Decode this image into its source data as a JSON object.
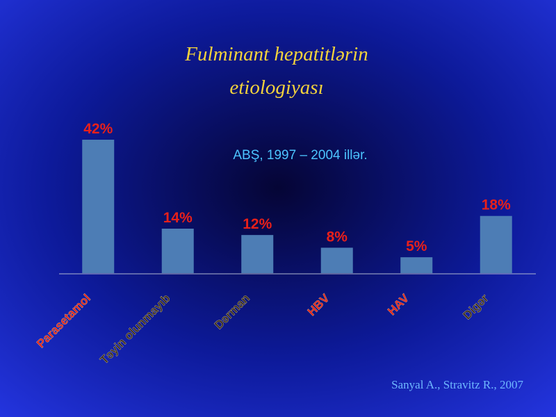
{
  "chart_data": {
    "type": "bar",
    "title": [
      "Fulminant hepatitlərin",
      "etiologiyası"
    ],
    "subtitle": "ABŞ, 1997 – 2004 illər.",
    "categories": [
      "Parasetamol",
      "Təyin olunmayıb",
      "Dərman",
      "HBV",
      "HAV",
      "Digər"
    ],
    "values": [
      42,
      14,
      12,
      8,
      5,
      18
    ],
    "value_labels": [
      "42%",
      "14%",
      "12%",
      "8%",
      "5%",
      "18%"
    ],
    "color": "#4d7db5",
    "value_label_color": "#e8201a",
    "category_colors": [
      "#e8201a",
      "#3a2e20",
      "#3a2e20",
      "#e8201a",
      "#e8201a",
      "#3a2e20"
    ],
    "source": "Sanyal A., Stravitz R., 2007"
  }
}
